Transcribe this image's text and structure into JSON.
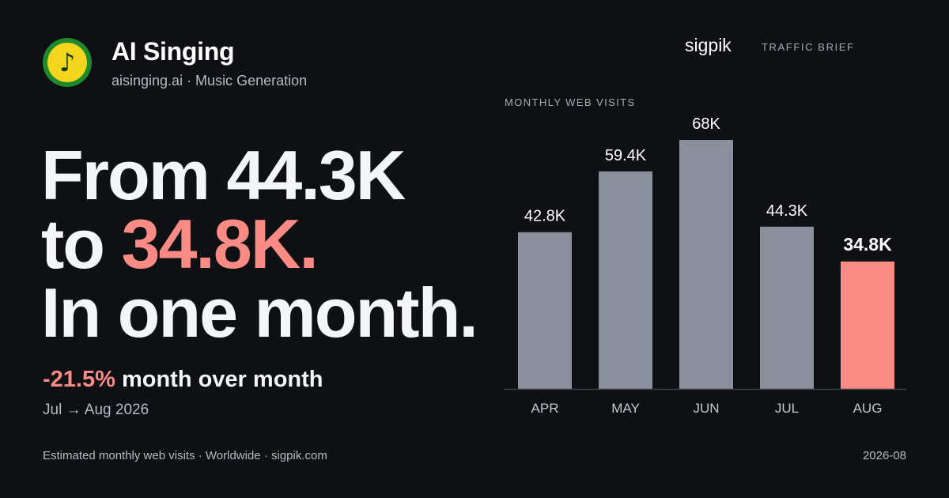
{
  "app": {
    "name": "AI Singing",
    "subtitle": "aisinging.ai · Music Generation",
    "logo_icon": "music-note-icon",
    "logo_glyph": "♪"
  },
  "brand": {
    "name": "sigpik",
    "tag": "TRAFFIC BRIEF"
  },
  "headline": {
    "line1": "From 44.3K",
    "line2_prefix": "to ",
    "line2_accent": "34.8K.",
    "line3": "In one month."
  },
  "delta": {
    "pct": "-21.5%",
    "label": " month over month"
  },
  "period": "Jul → Aug 2026",
  "footer": {
    "left": "Estimated monthly web visits · Worldwide · sigpik.com",
    "right": "2026-08"
  },
  "colors": {
    "background": "#0e1014",
    "bar": "#8a8f9c",
    "highlight": "#f98b84",
    "text": "#f4f5f7",
    "muted": "#b6bac2"
  },
  "chart_data": {
    "type": "bar",
    "title": "MONTHLY WEB VISITS",
    "categories": [
      "APR",
      "MAY",
      "JUN",
      "JUL",
      "AUG"
    ],
    "values": [
      42800,
      59400,
      68000,
      44300,
      34800
    ],
    "value_labels": [
      "42.8K",
      "59.4K",
      "68K",
      "44.3K",
      "34.8K"
    ],
    "highlight_index": 4,
    "ylim": [
      0,
      68000
    ],
    "grid": false,
    "legend": "none"
  }
}
